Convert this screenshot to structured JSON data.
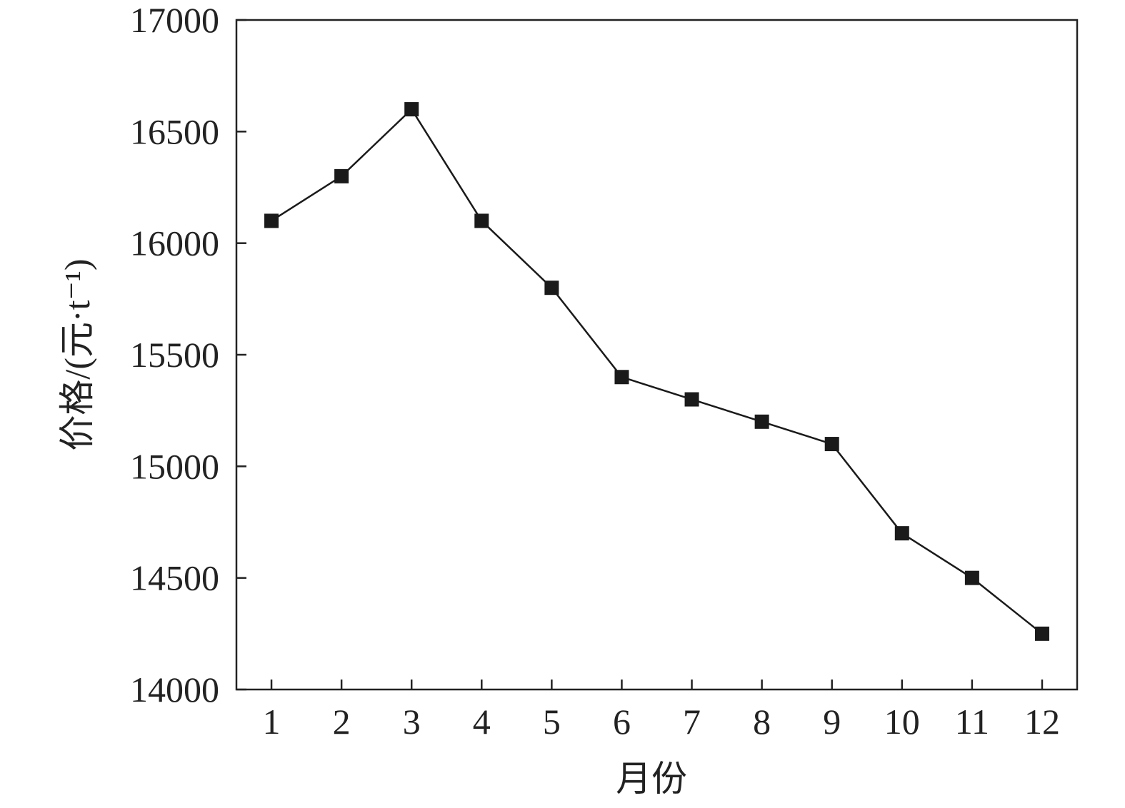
{
  "chart_data": {
    "type": "line",
    "title": "",
    "xlabel": "月份",
    "ylabel": "价格/(元·t⁻¹)",
    "x": [
      1,
      2,
      3,
      4,
      5,
      6,
      7,
      8,
      9,
      10,
      11,
      12
    ],
    "xticks": [
      "1",
      "2",
      "3",
      "4",
      "5",
      "6",
      "7",
      "8",
      "9",
      "10",
      "11",
      "12"
    ],
    "xlim": [
      0.5,
      12.5
    ],
    "ylim": [
      14000,
      17000
    ],
    "yticks": [
      14000,
      14500,
      15000,
      15500,
      16000,
      16500,
      17000
    ],
    "series": [
      {
        "values": [
          16100,
          16300,
          16600,
          16100,
          15800,
          15400,
          15300,
          15200,
          15100,
          14700,
          14500,
          14250
        ],
        "marker": "square",
        "color": "#1a1a1a"
      }
    ],
    "grid": false,
    "legend": "none"
  }
}
